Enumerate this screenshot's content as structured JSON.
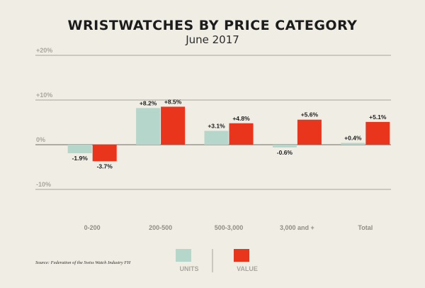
{
  "chart_data": {
    "type": "bar",
    "title": "WRISTWATCHES BY PRICE CATEGORY",
    "subtitle": "June 2017",
    "categories": [
      "0-200",
      "200-500",
      "500-3,000",
      "3,000 and +",
      "Total"
    ],
    "series": [
      {
        "name": "UNITS",
        "color": "#b4d6cb",
        "values": [
          -1.9,
          8.2,
          3.1,
          -0.6,
          0.4
        ],
        "labels": [
          "-1.9%",
          "+8.2%",
          "+3.1%",
          "-0.6%",
          "+0.4%"
        ]
      },
      {
        "name": "VALUE",
        "color": "#e8351c",
        "values": [
          -3.7,
          8.5,
          4.8,
          5.6,
          5.1
        ],
        "labels": [
          "-3.7%",
          "+8.5%",
          "+4.8%",
          "+5.6%",
          "+5.1%"
        ]
      }
    ],
    "yticks": [
      20,
      10,
      0,
      -10
    ],
    "ytick_labels": [
      "+20%",
      "+10%",
      "0%",
      "-10%"
    ],
    "ylim": [
      -15,
      20
    ],
    "grid": true,
    "legend_position": "bottom-center",
    "source": "Source: Federation of the Swiss Watch Industry FH"
  }
}
